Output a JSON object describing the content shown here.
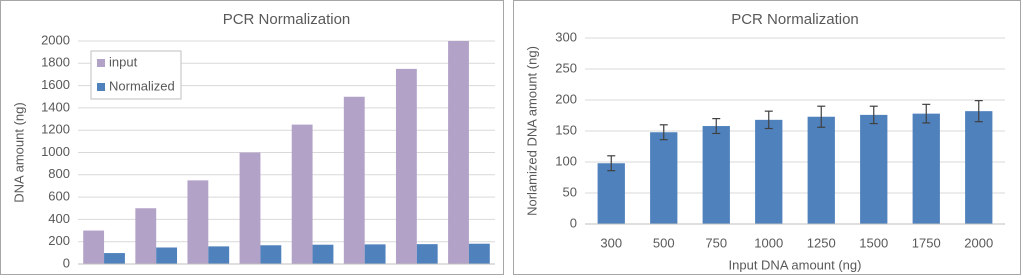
{
  "chart_data": [
    {
      "type": "bar",
      "title": "PCR Normalization",
      "y_label": "DNA amount (ng)",
      "categories": [
        null,
        null,
        null,
        null,
        null,
        null,
        null,
        null
      ],
      "series": [
        {
          "name": "input",
          "color": "#b3a2c7",
          "values": [
            300,
            500,
            750,
            1000,
            1250,
            1500,
            1750,
            2000
          ]
        },
        {
          "name": "Normalized",
          "color": "#4f81bd",
          "values": [
            98,
            148,
            158,
            168,
            173,
            176,
            178,
            182
          ]
        }
      ],
      "ylim": [
        0,
        2000
      ],
      "yticks": [
        0,
        200,
        400,
        600,
        800,
        1000,
        1200,
        1400,
        1600,
        1800,
        2000
      ],
      "grid": true,
      "legend": "top-left"
    },
    {
      "type": "bar",
      "title": "PCR Normalization",
      "x_label": "Input DNA amount (ng)",
      "y_label": "Norlamized DNA amount (ng)",
      "categories": [
        "300",
        "500",
        "750",
        "1000",
        "1250",
        "1500",
        "1750",
        "2000"
      ],
      "values": [
        98,
        148,
        158,
        168,
        173,
        176,
        178,
        182
      ],
      "errors": [
        12,
        12,
        12,
        14,
        17,
        14,
        15,
        17
      ],
      "color": "#4f81bd",
      "ylim": [
        0,
        300
      ],
      "yticks": [
        0,
        50,
        100,
        150,
        200,
        250,
        300
      ],
      "grid": true
    }
  ]
}
